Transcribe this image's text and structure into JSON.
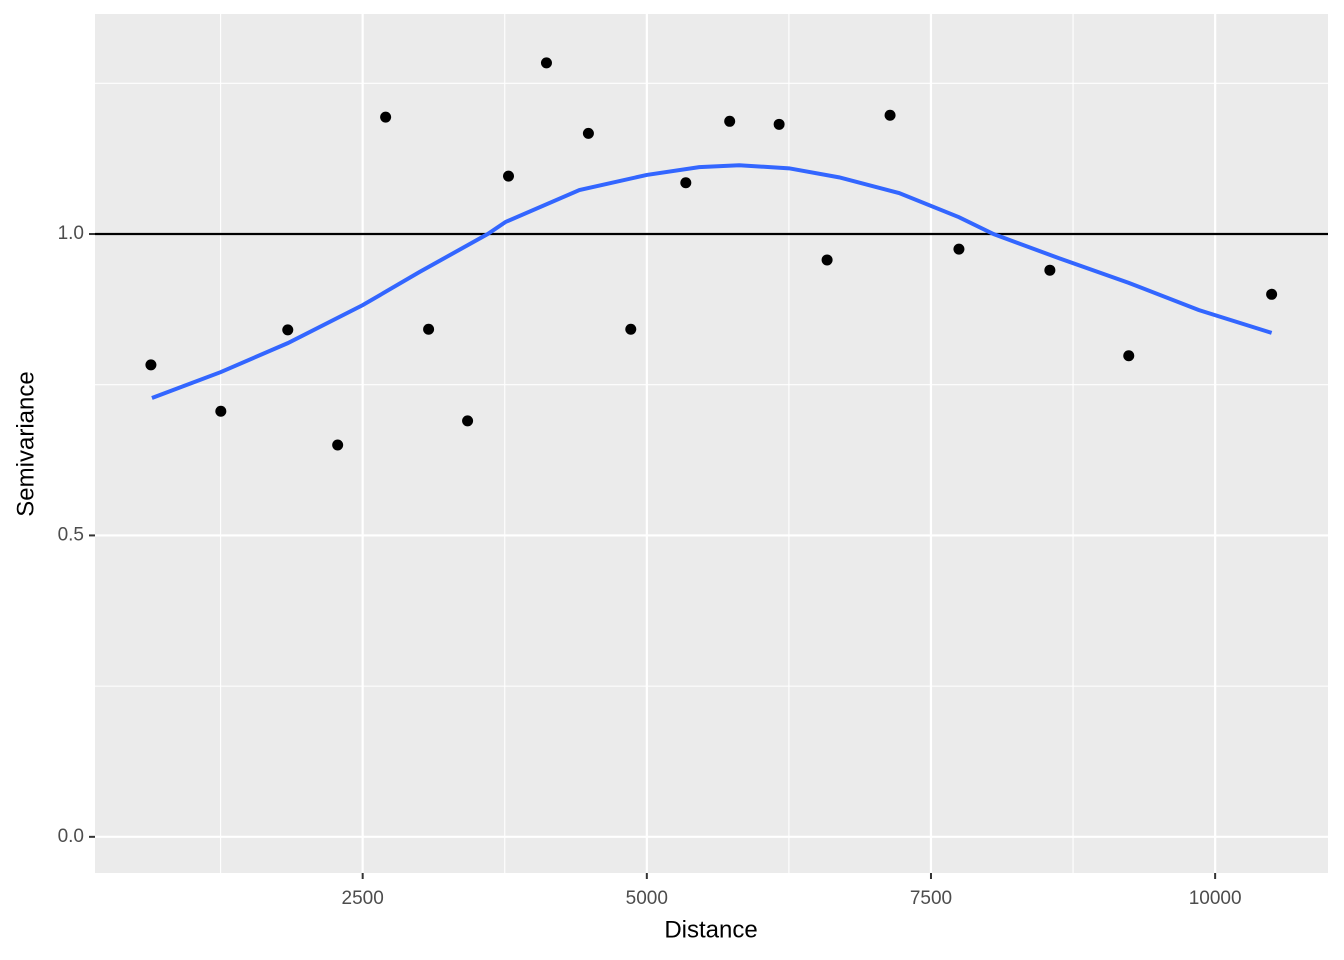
{
  "chart_data": {
    "type": "scatter",
    "x_label": "Distance",
    "y_label": "Semivariance",
    "xlim": [
      145,
      10993
    ],
    "ylim": [
      -0.06,
      1.365
    ],
    "xticks": [
      2500,
      5000,
      7500,
      10000
    ],
    "yticks": [
      {
        "value": 0,
        "label": "0.0"
      },
      {
        "value": 0.5,
        "label": "0.5"
      },
      {
        "value": 1,
        "label": "1.0"
      }
    ],
    "x_minor_grid": [
      1250,
      3750,
      6250,
      8750
    ],
    "y_minor_grid": [
      0.25,
      0.75,
      1.25
    ],
    "grid": true,
    "hline": 1,
    "points": {
      "color": "#000000",
      "x": [
        637,
        1252,
        1841,
        2280,
        2702,
        3080,
        3423,
        3783,
        4117,
        4486,
        4859,
        5343,
        5729,
        6164,
        6586,
        7140,
        7746,
        8546,
        9240,
        10497
      ],
      "y": [
        0.783,
        0.706,
        0.841,
        0.65,
        1.194,
        0.842,
        0.69,
        1.096,
        1.284,
        1.167,
        0.842,
        1.085,
        1.187,
        1.182,
        0.957,
        1.197,
        0.975,
        0.94,
        0.798,
        0.9
      ]
    },
    "smooth": {
      "color": "#3366ff",
      "x": [
        646,
        1252,
        1841,
        2500,
        3000,
        3600,
        3757,
        4407,
        5000,
        5461,
        5813,
        6252,
        6692,
        7219,
        7746,
        8050,
        8624,
        9240,
        9855,
        10497
      ],
      "y": [
        0.728,
        0.771,
        0.819,
        0.882,
        0.937,
        1.0,
        1.02,
        1.073,
        1.098,
        1.111,
        1.114,
        1.109,
        1.094,
        1.068,
        1.028,
        1.0,
        0.96,
        0.919,
        0.874,
        0.836
      ]
    }
  }
}
